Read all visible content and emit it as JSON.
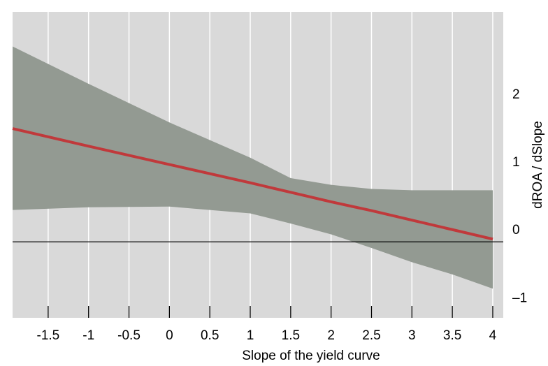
{
  "chart_data": {
    "type": "line",
    "x_label": "Slope of the yield curve",
    "y_label": "dROA / dSlope",
    "x": [
      -1.94,
      -1,
      0,
      1,
      1.5,
      2,
      2.5,
      3,
      3.5,
      4
    ],
    "line": {
      "color": "#c0393b",
      "values": [
        1.67,
        1.41,
        1.14,
        0.87,
        0.73,
        0.59,
        0.46,
        0.32,
        0.18,
        0.04
      ]
    },
    "band": {
      "color": "#939a92",
      "upper": [
        2.88,
        2.33,
        1.76,
        1.24,
        0.94,
        0.84,
        0.78,
        0.76,
        0.76,
        0.76
      ],
      "lower": [
        0.47,
        0.51,
        0.52,
        0.42,
        0.27,
        0.11,
        -0.09,
        -0.3,
        -0.48,
        -0.69
      ]
    },
    "xlim": [
      -1.94,
      4.13
    ],
    "ylim": [
      -1.12,
      3.39
    ],
    "xticks": [
      -1.5,
      -1,
      -0.5,
      0,
      0.5,
      1,
      1.5,
      2,
      2.5,
      3,
      3.5,
      4
    ],
    "yticks": [
      {
        "value": -1,
        "label": "–1"
      },
      0,
      1,
      2
    ],
    "grid": true
  }
}
